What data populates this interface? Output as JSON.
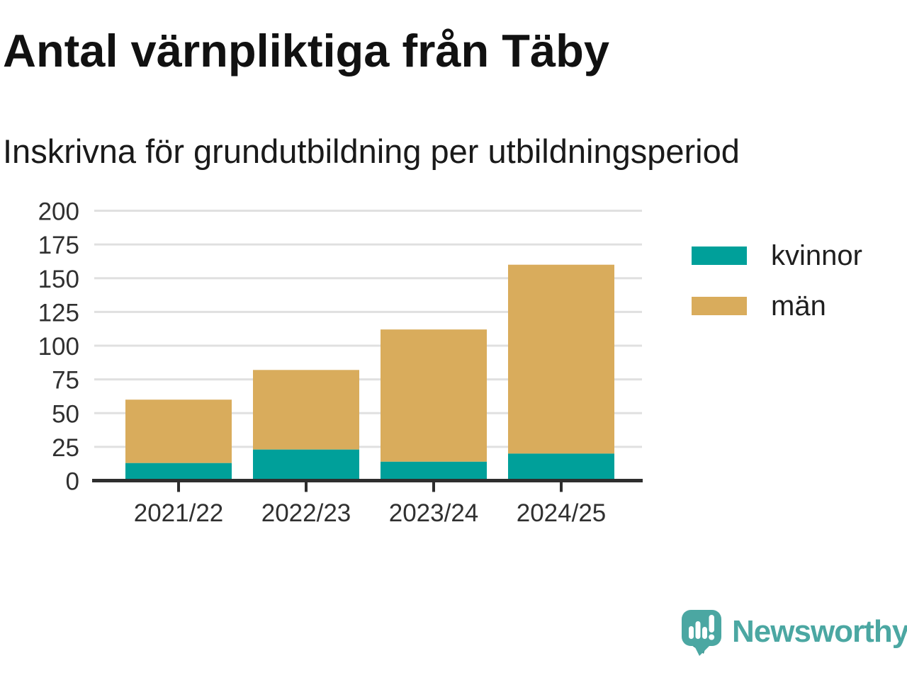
{
  "title": "Antal värnpliktiga från Täby",
  "subtitle": "Inskrivna för grundutbildning per utbildningsperiod",
  "colors": {
    "kvinnor": "#00a09a",
    "man": "#d9ac5c",
    "grid": "#e0e0e0",
    "axis": "#2e2e2e",
    "tick_label": "#303030",
    "logo_teal": "#4ba7a2",
    "logo_shadow": "#3c8f8a"
  },
  "chart_data": {
    "type": "bar",
    "stacked": true,
    "title": "Antal värnpliktiga från Täby",
    "subtitle": "Inskrivna för grundutbildning per utbildningsperiod",
    "categories": [
      "2021/22",
      "2022/23",
      "2023/24",
      "2024/25"
    ],
    "series": [
      {
        "name": "kvinnor",
        "color": "#00a09a",
        "values": [
          13,
          23,
          14,
          20
        ]
      },
      {
        "name": "män",
        "color": "#d9ac5c",
        "values": [
          47,
          59,
          98,
          140
        ]
      }
    ],
    "totals": [
      60,
      82,
      112,
      160
    ],
    "xlabel": "",
    "ylabel": "",
    "ylim": [
      0,
      200
    ],
    "ytick_step": 25,
    "grid": "horizontal",
    "legend_position": "right"
  },
  "legend": {
    "items": [
      {
        "label": "kvinnor",
        "color": "#00a09a"
      },
      {
        "label": "män",
        "color": "#d9ac5c"
      }
    ]
  },
  "logo": {
    "text": "Newsworthy"
  }
}
